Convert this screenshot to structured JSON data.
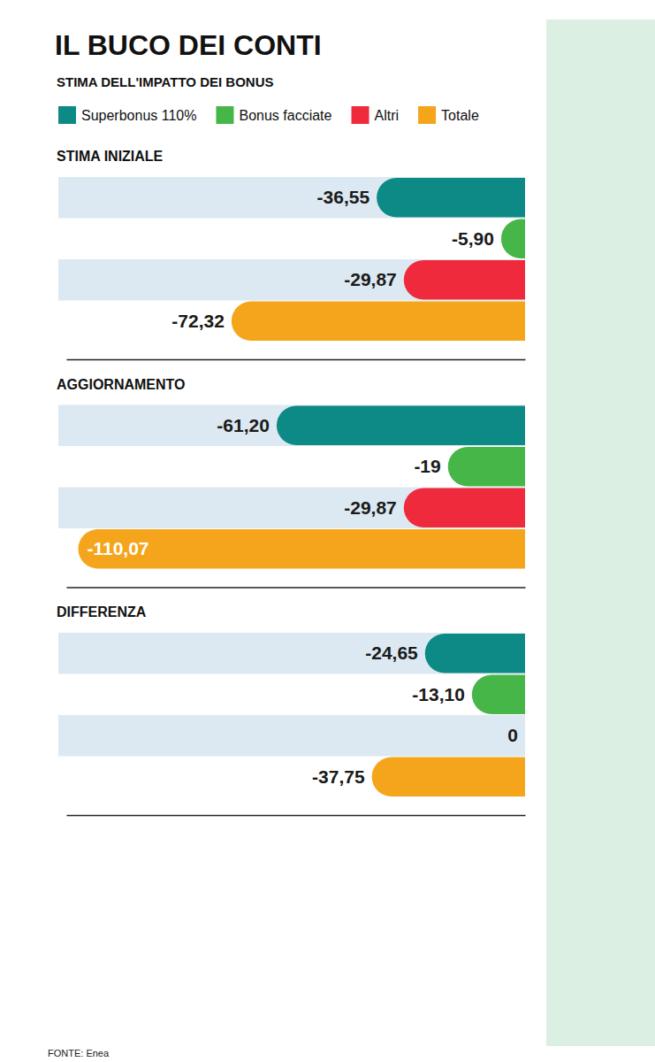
{
  "header": {
    "title": "IL BUCO DEI CONTI",
    "subtitle": "STIMA DELL'IMPATTO DEI BONUS"
  },
  "source": "FONTE: Enea",
  "chart_data": [
    {
      "type": "bar",
      "orientation": "horizontal",
      "title": "STIMA INIZIALE",
      "xlim": [
        -113,
        0
      ],
      "tick_labels": false,
      "data_labels": true,
      "legend": "top",
      "series": [
        {
          "name": "Superbonus 110%",
          "color": "#0e8a86",
          "values": [
            -36.55
          ],
          "value_labels": [
            "-36,55"
          ]
        },
        {
          "name": "Bonus facciate",
          "color": "#46b649",
          "values": [
            -5.9
          ],
          "value_labels": [
            "-5,90"
          ]
        },
        {
          "name": "Altri",
          "color": "#ee2a3c",
          "values": [
            -29.87
          ],
          "value_labels": [
            "-29,87"
          ]
        },
        {
          "name": "Totale",
          "color": "#f4a51c",
          "values": [
            -72.32
          ],
          "value_labels": [
            "-72,32"
          ]
        }
      ]
    },
    {
      "type": "bar",
      "orientation": "horizontal",
      "title": "AGGIORNAMENTO",
      "xlim": [
        -113,
        0
      ],
      "tick_labels": false,
      "data_labels": true,
      "series": [
        {
          "color": "#0e8a86",
          "values": [
            -61.2
          ],
          "value_labels": [
            "-61,20"
          ]
        },
        {
          "color": "#46b649",
          "values": [
            -19
          ],
          "value_labels": [
            "-19"
          ]
        },
        {
          "color": "#ee2a3c",
          "values": [
            -29.87
          ],
          "value_labels": [
            "-29,87"
          ]
        },
        {
          "color": "#f4a51c",
          "values": [
            -110.07
          ],
          "value_labels": [
            "-110,07"
          ]
        }
      ]
    },
    {
      "type": "bar",
      "orientation": "horizontal",
      "title": "DIFFERENZA",
      "xlim": [
        -113,
        0
      ],
      "tick_labels": false,
      "data_labels": true,
      "series": [
        {
          "color": "#0e8a86",
          "values": [
            -24.65
          ],
          "value_labels": [
            "-24,65"
          ]
        },
        {
          "color": "#46b649",
          "values": [
            -13.1
          ],
          "value_labels": [
            "-13,10"
          ]
        },
        {
          "color": "#ee2a3c",
          "values": [
            0
          ],
          "value_labels": [
            "0"
          ]
        },
        {
          "color": "#f4a51c",
          "values": [
            -37.75
          ],
          "value_labels": [
            "-37,75"
          ]
        }
      ]
    }
  ]
}
